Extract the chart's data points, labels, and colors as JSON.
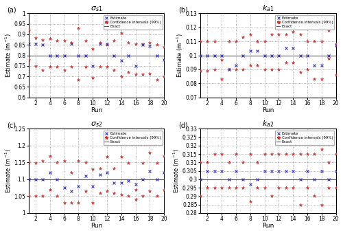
{
  "panels": [
    {
      "label": "(a)",
      "title": "$\\sigma_{s1}$",
      "exact": 0.8,
      "ylim": [
        0.6,
        1.0
      ],
      "yticks": [
        0.6,
        0.65,
        0.7,
        0.75,
        0.8,
        0.85,
        0.9,
        0.95,
        1.0
      ],
      "ytick_labels": [
        "0.6",
        "0.65",
        "0.7",
        "0.75",
        "0.8",
        "0.85",
        "0.9",
        "0.95",
        "1"
      ],
      "estimates": [
        0.853,
        0.853,
        0.852,
        0.8,
        0.8,
        0.8,
        0.853,
        0.8,
        0.8,
        0.75,
        0.853,
        0.853,
        0.8,
        0.775,
        0.8,
        0.75,
        0.85,
        0.845,
        0.8,
        0.78
      ],
      "ci_upper": [
        0.92,
        0.885,
        0.875,
        0.88,
        0.87,
        0.87,
        0.86,
        0.93,
        0.87,
        0.83,
        0.86,
        0.85,
        0.87,
        0.905,
        0.86,
        0.855,
        0.855,
        0.86,
        0.85,
        0.84
      ],
      "ci_lower": [
        0.78,
        0.75,
        0.73,
        0.745,
        0.745,
        0.73,
        0.745,
        0.685,
        0.745,
        0.695,
        0.745,
        0.745,
        0.73,
        0.7,
        0.72,
        0.71,
        0.71,
        0.715,
        0.685,
        0.7
      ]
    },
    {
      "label": "(b)",
      "title": "$k_{a1}$",
      "exact": 0.1,
      "ylim": [
        0.07,
        0.13
      ],
      "yticks": [
        0.07,
        0.08,
        0.09,
        0.1,
        0.11,
        0.12,
        0.13
      ],
      "ytick_labels": [
        "0.07",
        "0.08",
        "0.09",
        "0.1",
        "0.11",
        "0.12",
        "0.13"
      ],
      "estimates": [
        0.1,
        0.1,
        0.1,
        0.1,
        0.09,
        0.093,
        0.1,
        0.103,
        0.103,
        0.1,
        0.1,
        0.1,
        0.105,
        0.105,
        0.1,
        0.1,
        0.093,
        0.093,
        0.1,
        0.107
      ],
      "ci_upper": [
        0.11,
        0.11,
        0.11,
        0.097,
        0.11,
        0.11,
        0.113,
        0.115,
        0.11,
        0.11,
        0.115,
        0.115,
        0.115,
        0.117,
        0.115,
        0.11,
        0.11,
        0.11,
        0.118,
        0.108
      ],
      "ci_lower": [
        0.089,
        0.089,
        0.09,
        0.083,
        0.09,
        0.09,
        0.09,
        0.093,
        0.093,
        0.09,
        0.09,
        0.09,
        0.095,
        0.095,
        0.088,
        0.09,
        0.083,
        0.083,
        0.098,
        0.086
      ]
    },
    {
      "label": "(c)",
      "title": "$\\sigma_{s2}$",
      "exact": 1.1,
      "ylim": [
        1.0,
        1.25
      ],
      "yticks": [
        1.0,
        1.05,
        1.1,
        1.15,
        1.2,
        1.25
      ],
      "ytick_labels": [
        "1",
        "1.05",
        "1.1",
        "1.15",
        "1.2",
        "1.25"
      ],
      "estimates": [
        1.1,
        1.1,
        1.1,
        1.12,
        1.1,
        1.075,
        1.065,
        1.08,
        1.11,
        1.08,
        1.115,
        1.12,
        1.09,
        1.09,
        1.095,
        1.085,
        1.1,
        1.125,
        1.1,
        1.12
      ],
      "ci_upper": [
        1.15,
        1.148,
        1.155,
        1.17,
        1.15,
        1.155,
        1.12,
        1.155,
        1.15,
        1.13,
        1.133,
        1.168,
        1.133,
        1.168,
        1.148,
        1.07,
        1.148,
        1.18,
        1.148,
        1.17
      ],
      "ci_lower": [
        1.05,
        1.05,
        1.05,
        1.07,
        1.05,
        1.03,
        1.03,
        1.03,
        1.065,
        1.03,
        1.06,
        1.065,
        1.06,
        1.055,
        1.05,
        1.04,
        1.05,
        1.065,
        1.05,
        1.07
      ]
    },
    {
      "label": "(d)",
      "title": "$k_{a2}$",
      "exact": 0.3,
      "ylim": [
        0.28,
        0.33
      ],
      "yticks": [
        0.28,
        0.285,
        0.29,
        0.295,
        0.3,
        0.305,
        0.31,
        0.315,
        0.32,
        0.325,
        0.33
      ],
      "ytick_labels": [
        "0.28",
        "0.285",
        "0.29",
        "0.295",
        "0.3",
        "0.305",
        "0.31",
        "0.315",
        "0.32",
        "0.325",
        "0.33"
      ],
      "estimates": [
        0.3,
        0.305,
        0.305,
        0.305,
        0.3,
        0.305,
        0.3,
        0.297,
        0.3,
        0.305,
        0.305,
        0.305,
        0.305,
        0.305,
        0.3,
        0.305,
        0.3,
        0.305,
        0.3,
        0.305
      ],
      "ci_upper": [
        0.31,
        0.31,
        0.315,
        0.315,
        0.31,
        0.315,
        0.31,
        0.315,
        0.31,
        0.315,
        0.315,
        0.315,
        0.315,
        0.315,
        0.315,
        0.315,
        0.315,
        0.318,
        0.31,
        0.315
      ],
      "ci_lower": [
        0.29,
        0.295,
        0.295,
        0.295,
        0.295,
        0.295,
        0.295,
        0.287,
        0.295,
        0.295,
        0.29,
        0.295,
        0.295,
        0.295,
        0.285,
        0.295,
        0.29,
        0.285,
        0.295,
        0.295
      ]
    }
  ],
  "runs": [
    1,
    2,
    3,
    4,
    5,
    6,
    7,
    8,
    9,
    10,
    11,
    12,
    13,
    14,
    15,
    16,
    17,
    18,
    19,
    20
  ],
  "estimate_color": "#3333bb",
  "ci_color": "#cc3333",
  "exact_color": "#555555",
  "bg_color": "#ffffff"
}
